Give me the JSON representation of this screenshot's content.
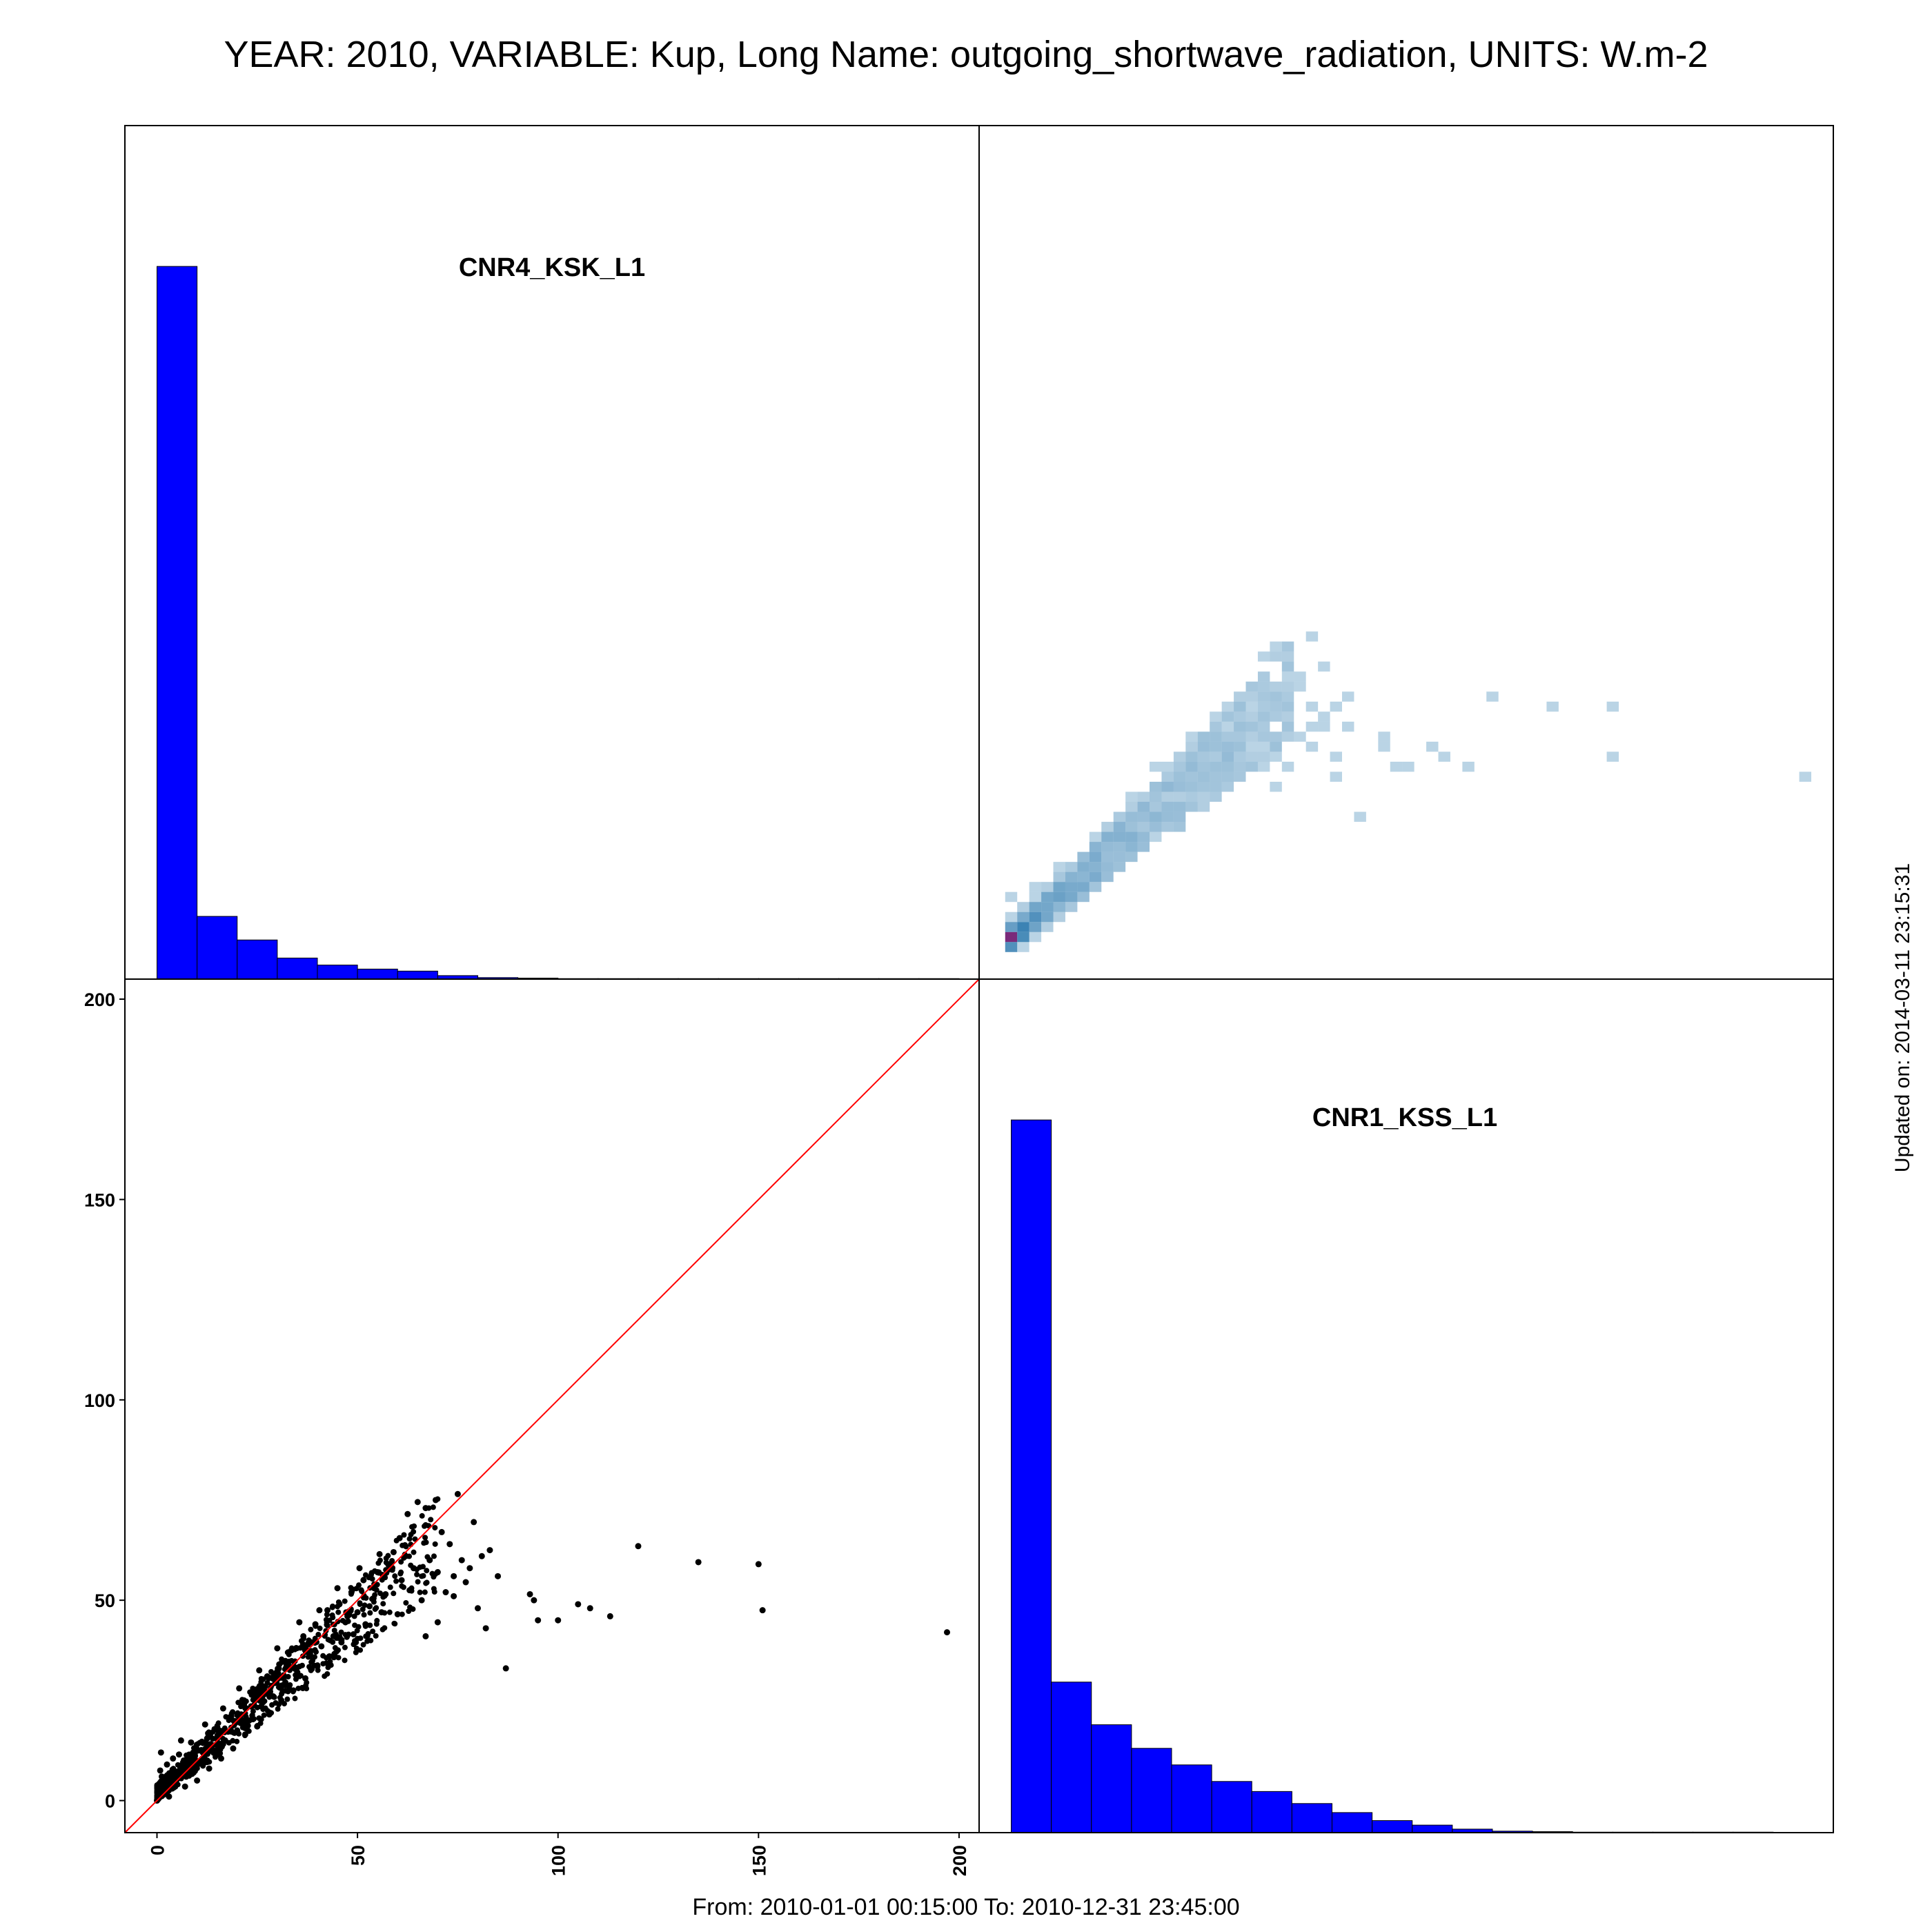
{
  "header": {
    "title": "YEAR: 2010, VARIABLE: Kup, Long Name: outgoing_shortwave_radiation, UNITS: W.m-2"
  },
  "footer": {
    "period": "From: 2010-01-01 00:15:00 To: 2010-12-31 23:45:00",
    "updated": "Updated on: 2014-03-11 23:15:31"
  },
  "colors": {
    "histogram_fill": "#0000ff",
    "identity_line": "#ff0000",
    "points": "#000000",
    "density_low": "#e8f1f9",
    "density_high": "#1c6fa8",
    "density_peak": "#7a2a7a"
  },
  "chart_data": {
    "type": "scatter",
    "layout": "pairs",
    "variables": [
      "CNR4_KSK_L1",
      "CNR1_KSS_L1"
    ],
    "xlim": [
      -8,
      205
    ],
    "ylim": [
      -8,
      205
    ],
    "xticks": [
      "0",
      "50",
      "100",
      "150",
      "200"
    ],
    "yticks": [
      "0",
      "50",
      "100",
      "150",
      "200"
    ],
    "xtick_values": [
      0,
      50,
      100,
      150,
      200
    ],
    "ytick_values": [
      0,
      50,
      100,
      150,
      200
    ],
    "identity_line": true,
    "histograms": [
      {
        "name": "CNR4_KSK_L1",
        "bin_width": 10,
        "bin_start": 0,
        "counts": [
          1420,
          125,
          78,
          42,
          28,
          20,
          16,
          7,
          3,
          2,
          1,
          1,
          1,
          1,
          1,
          1,
          1,
          1,
          1,
          1
        ]
      },
      {
        "name": "CNR1_KSS_L1",
        "bin_width": 10,
        "bin_start": 0,
        "counts": [
          1420,
          300,
          215,
          168,
          135,
          102,
          82,
          58,
          40,
          24,
          15,
          7,
          3,
          2,
          1,
          1,
          1,
          1,
          1
        ]
      }
    ],
    "scatter_points": [
      [
        0.5,
        2.5
      ],
      [
        1.2,
        6.0
      ],
      [
        2.0,
        4.5
      ],
      [
        3.5,
        7.0
      ],
      [
        5.0,
        5.5
      ],
      [
        6.5,
        9.5
      ],
      [
        8.0,
        8.0
      ],
      [
        9.5,
        12.0
      ],
      [
        11.0,
        10.0
      ],
      [
        12.5,
        15.5
      ],
      [
        14.0,
        12.5
      ],
      [
        15.5,
        17.5
      ],
      [
        17.0,
        15.0
      ],
      [
        18.5,
        21.0
      ],
      [
        20.0,
        17.5
      ],
      [
        21.5,
        24.0
      ],
      [
        23.0,
        20.0
      ],
      [
        24.5,
        27.0
      ],
      [
        26.0,
        23.5
      ],
      [
        27.5,
        31.0
      ],
      [
        29.0,
        26.0
      ],
      [
        30.5,
        34.0
      ],
      [
        32.0,
        29.5
      ],
      [
        33.5,
        37.5
      ],
      [
        35.0,
        32.0
      ],
      [
        36.5,
        41.0
      ],
      [
        38.0,
        36.0
      ],
      [
        39.5,
        44.0
      ],
      [
        41.0,
        38.5
      ],
      [
        42.5,
        47.5
      ],
      [
        44.0,
        41.0
      ],
      [
        45.5,
        49.0
      ],
      [
        47.0,
        44.5
      ],
      [
        48.5,
        52.0
      ],
      [
        50.0,
        47.0
      ],
      [
        51.5,
        55.0
      ],
      [
        53.0,
        48.5
      ],
      [
        55.0,
        57.0
      ],
      [
        57.0,
        51.5
      ],
      [
        59.0,
        62.0
      ],
      [
        61.0,
        55.0
      ],
      [
        62.5,
        71.5
      ],
      [
        64.0,
        58.0
      ],
      [
        65.0,
        74.5
      ],
      [
        66.0,
        50.0
      ],
      [
        67.0,
        73.0
      ],
      [
        68.0,
        60.0
      ],
      [
        69.5,
        75.0
      ],
      [
        70.0,
        57.0
      ],
      [
        71.0,
        67.0
      ],
      [
        72.0,
        52.0
      ],
      [
        73.0,
        64.0
      ],
      [
        74.0,
        56.0
      ],
      [
        75.0,
        76.5
      ],
      [
        76.0,
        60.0
      ],
      [
        78.0,
        58.0
      ],
      [
        79.0,
        69.5
      ],
      [
        80.0,
        48.0
      ],
      [
        81.0,
        61.0
      ],
      [
        82.0,
        43.0
      ],
      [
        83.0,
        62.5
      ],
      [
        85.0,
        56.0
      ],
      [
        87.0,
        33.0
      ],
      [
        93.0,
        51.5
      ],
      [
        94.0,
        50.0
      ],
      [
        95.0,
        45.0
      ],
      [
        100.0,
        45.0
      ],
      [
        105.0,
        49.0
      ],
      [
        108.0,
        48.0
      ],
      [
        113.0,
        46.0
      ],
      [
        120.0,
        63.5
      ],
      [
        135.0,
        59.5
      ],
      [
        150.0,
        59.0
      ],
      [
        151.0,
        47.5
      ],
      [
        197.0,
        42.0
      ],
      [
        3.0,
        1.0
      ],
      [
        7.0,
        3.5
      ],
      [
        10.0,
        5.0
      ],
      [
        13.0,
        8.0
      ],
      [
        16.0,
        10.5
      ],
      [
        19.0,
        13.0
      ],
      [
        22.0,
        16.5
      ],
      [
        25.0,
        18.5
      ],
      [
        28.0,
        21.5
      ],
      [
        31.0,
        25.0
      ],
      [
        34.0,
        27.5
      ],
      [
        37.0,
        30.5
      ],
      [
        40.0,
        33.5
      ],
      [
        43.0,
        36.0
      ],
      [
        46.0,
        39.5
      ],
      [
        49.0,
        41.5
      ],
      [
        52.0,
        44.0
      ],
      [
        56.0,
        47.0
      ],
      [
        60.0,
        46.5
      ],
      [
        63.0,
        52.5
      ],
      [
        67.0,
        41.0
      ],
      [
        70.0,
        44.5
      ],
      [
        74.0,
        51.0
      ],
      [
        77.0,
        54.5
      ],
      [
        4.0,
        10.5
      ],
      [
        8.5,
        14.5
      ],
      [
        12.0,
        19.0
      ],
      [
        16.5,
        23.0
      ],
      [
        20.5,
        28.0
      ],
      [
        25.5,
        32.5
      ],
      [
        30.0,
        38.0
      ],
      [
        35.5,
        44.5
      ],
      [
        40.5,
        47.5
      ],
      [
        45.0,
        53.0
      ],
      [
        50.5,
        58.0
      ],
      [
        55.5,
        61.5
      ],
      [
        60.5,
        65.5
      ],
      [
        58.0,
        59.0
      ],
      [
        54.0,
        50.5
      ],
      [
        47.5,
        46.0
      ],
      [
        38.5,
        39.5
      ],
      [
        33.0,
        33.0
      ],
      [
        27.0,
        28.5
      ],
      [
        21.0,
        21.5
      ],
      [
        15.0,
        14.0
      ],
      [
        9.0,
        10.0
      ],
      [
        4.5,
        4.0
      ],
      [
        2.5,
        9.0
      ],
      [
        1.0,
        12.0
      ],
      [
        6.0,
        15.0
      ],
      [
        0.0,
        0.0
      ],
      [
        1.5,
        3.0
      ],
      [
        2.2,
        5.0
      ],
      [
        0.8,
        7.5
      ],
      [
        3.8,
        3.0
      ],
      [
        5.5,
        11.5
      ]
    ]
  }
}
